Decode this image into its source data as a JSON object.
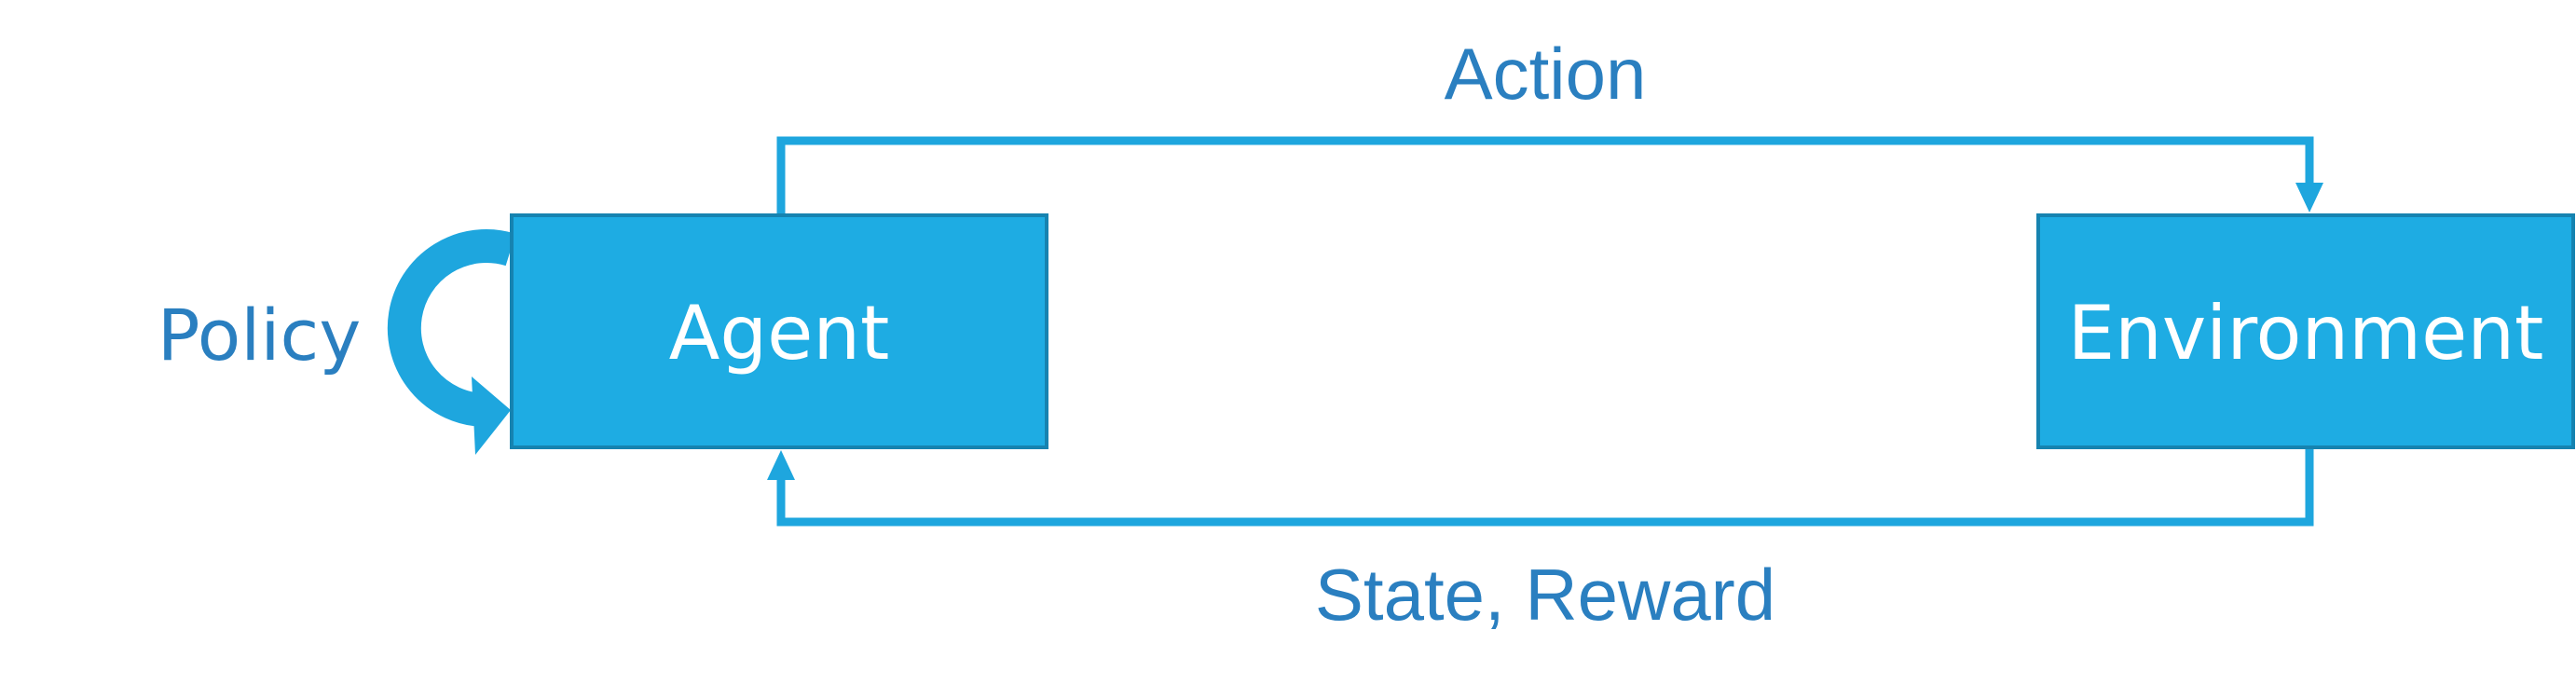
{
  "diagram": {
    "nodes": {
      "agent": {
        "label": "Agent"
      },
      "environment": {
        "label": "Environment"
      }
    },
    "edges": {
      "action": {
        "label": "Action"
      },
      "state_reward": {
        "label": "State, Reward"
      }
    },
    "loop": {
      "label": "Policy"
    }
  },
  "colors": {
    "box_fill": "#1eace3",
    "box_border": "#1683b0",
    "line": "#1ea6de",
    "label_text": "#2a7fc0",
    "box_text": "#ffffff"
  }
}
